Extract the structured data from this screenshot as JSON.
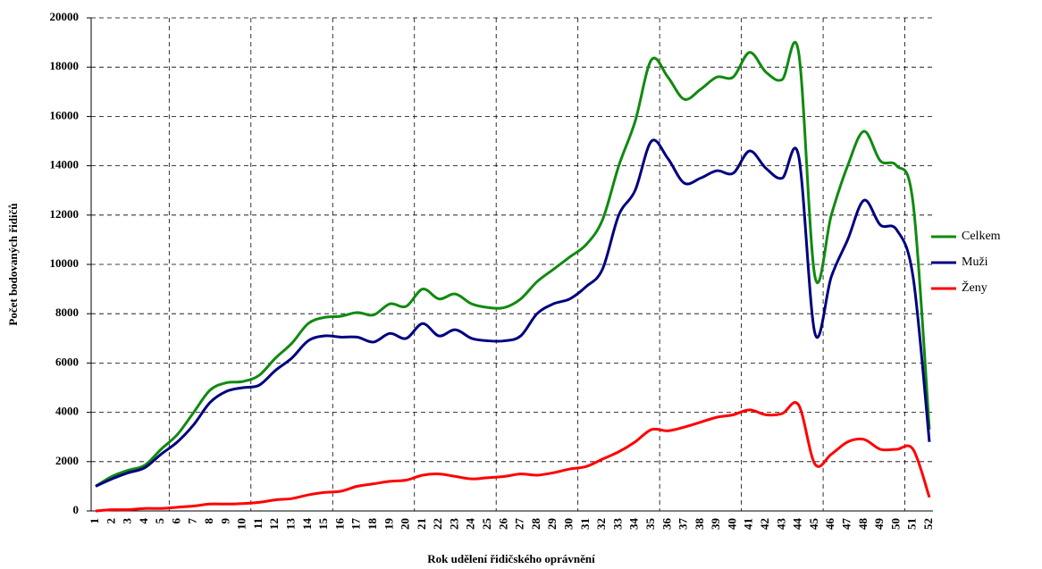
{
  "chart_data": {
    "type": "line",
    "x_label": "Rok udělení řidičského oprávnění",
    "y_label": "Počet bodovaných řidičů",
    "categories": [
      "1",
      "2",
      "3",
      "4",
      "5",
      "6",
      "7",
      "8",
      "9",
      "10",
      "11",
      "12",
      "13",
      "14",
      "15",
      "16",
      "17",
      "18",
      "19",
      "20",
      "21",
      "22",
      "23",
      "24",
      "25",
      "26",
      "27",
      "28",
      "29",
      "30",
      "31",
      "32",
      "33",
      "34",
      "35",
      "36",
      "37",
      "38",
      "39",
      "40",
      "41",
      "42",
      "43",
      "44",
      "45",
      "46",
      "47",
      "48",
      "49",
      "50",
      "51",
      "52"
    ],
    "series": [
      {
        "name": "Celkem",
        "color": "#108a10",
        "values": [
          1000,
          1400,
          1650,
          1850,
          2500,
          3100,
          4000,
          4900,
          5200,
          5250,
          5500,
          6200,
          6800,
          7600,
          7850,
          7900,
          8050,
          7950,
          8400,
          8300,
          9000,
          8600,
          8800,
          8400,
          8250,
          8250,
          8600,
          9300,
          9800,
          10300,
          10800,
          11800,
          14000,
          15800,
          18300,
          17600,
          16700,
          17100,
          17600,
          17600,
          18600,
          17800,
          17500,
          18600,
          9500,
          12000,
          14000,
          15400,
          14200,
          14000,
          12500,
          3300
        ]
      },
      {
        "name": "Muži",
        "color": "#00007f",
        "values": [
          1000,
          1300,
          1550,
          1750,
          2300,
          2800,
          3500,
          4400,
          4850,
          5000,
          5100,
          5700,
          6200,
          6900,
          7100,
          7050,
          7050,
          6850,
          7200,
          7000,
          7600,
          7100,
          7350,
          7000,
          6900,
          6900,
          7100,
          8000,
          8400,
          8600,
          9100,
          9800,
          12000,
          13000,
          15000,
          14300,
          13300,
          13500,
          13800,
          13700,
          14600,
          13900,
          13500,
          14400,
          7200,
          9500,
          11000,
          12600,
          11600,
          11400,
          9500,
          2800
        ]
      },
      {
        "name": "Ženy",
        "color": "#ff0000",
        "values": [
          0,
          50,
          50,
          100,
          100,
          150,
          200,
          280,
          280,
          300,
          350,
          450,
          500,
          650,
          750,
          800,
          1000,
          1100,
          1200,
          1250,
          1450,
          1500,
          1400,
          1300,
          1350,
          1400,
          1500,
          1450,
          1550,
          1700,
          1800,
          2100,
          2400,
          2800,
          3300,
          3250,
          3400,
          3600,
          3800,
          3900,
          4100,
          3900,
          3950,
          4300,
          1900,
          2300,
          2800,
          2900,
          2500,
          2500,
          2500,
          550
        ]
      }
    ],
    "ylim": [
      0,
      20000
    ],
    "yticks": [
      0,
      2000,
      4000,
      6000,
      8000,
      10000,
      12000,
      14000,
      16000,
      18000,
      20000
    ],
    "grid": true,
    "legend": "right"
  }
}
